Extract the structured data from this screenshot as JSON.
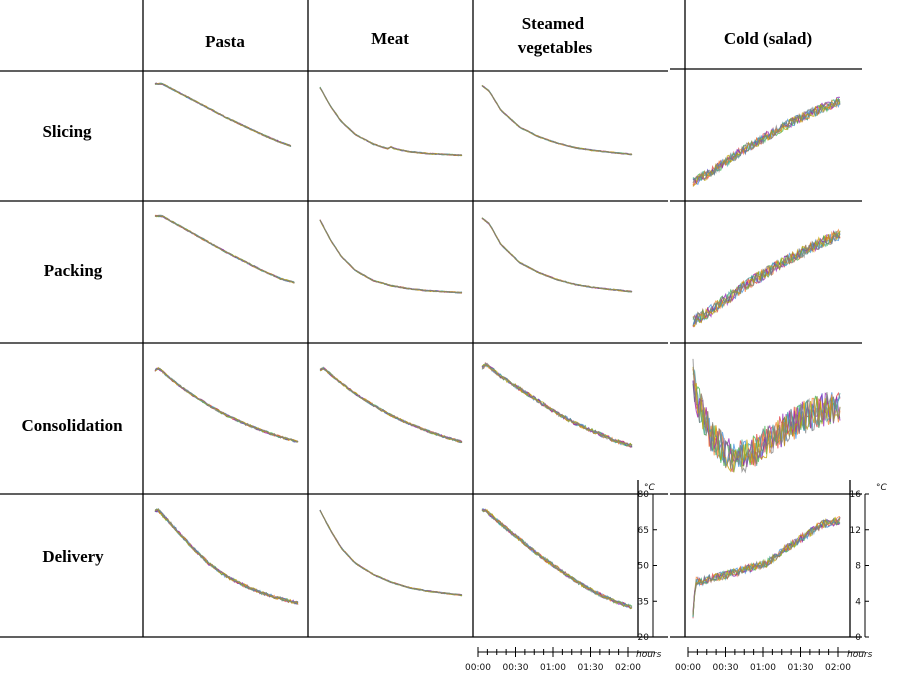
{
  "columns": [
    "Pasta",
    "Meat",
    "Steamed vegetables",
    "Cold (salad)"
  ],
  "columns_lines": [
    [
      "Pasta"
    ],
    [
      "Meat"
    ],
    [
      "Steamed",
      "vegetables"
    ],
    [
      "Cold (salad)"
    ]
  ],
  "rows": [
    "Slicing",
    "Packing",
    "Consolidation",
    "Delivery"
  ],
  "hot_axis": {
    "unit": "°C",
    "ticks": [
      "80",
      "65",
      "50",
      "35",
      "20"
    ]
  },
  "cold_axis": {
    "unit": "°C",
    "ticks": [
      "16",
      "12",
      "8",
      "4",
      "0"
    ]
  },
  "time_axis": {
    "unit": "hours",
    "ticks": [
      "00:00",
      "00:30",
      "01:00",
      "01:30",
      "02:00"
    ]
  },
  "palette": [
    "#e03c3c",
    "#3c8ee0",
    "#3cb44b",
    "#f58231",
    "#911eb4",
    "#46a0a0",
    "#c0a000",
    "#7f7f7f"
  ],
  "chart_data": {
    "type": "line",
    "description_grid": "rows x columns small multiples of temperature curves",
    "x_range_hours": [
      0,
      2
    ],
    "hot_ylim": [
      20,
      80
    ],
    "cold_ylim": [
      0,
      16
    ],
    "panels": [
      {
        "row": "Slicing",
        "column": "Pasta",
        "x": [
          0,
          0.1,
          0.25,
          0.5,
          0.75,
          1,
          1.25,
          1.5,
          1.75,
          1.9
        ],
        "y": [
          78,
          78,
          75,
          70,
          65,
          60,
          55.5,
          51,
          47,
          45
        ],
        "noise": 0.4
      },
      {
        "row": "Slicing",
        "column": "Meat",
        "x": [
          0,
          0.15,
          0.3,
          0.5,
          0.75,
          0.95,
          1.0,
          1.05,
          1.25,
          1.5,
          1.75,
          2.0
        ],
        "y": [
          76,
          66,
          58,
          51,
          46,
          43.5,
          44.5,
          43.5,
          42,
          41,
          40.5,
          40
        ],
        "noise": 0.3
      },
      {
        "row": "Slicing",
        "column": "Steamed vegetables",
        "x": [
          0,
          0.1,
          0.25,
          0.5,
          0.75,
          1,
          1.25,
          1.5,
          1.75,
          2.0
        ],
        "y": [
          77,
          74,
          64,
          55,
          50,
          46.5,
          44,
          42.5,
          41.5,
          40.5
        ],
        "noise": 0.3
      },
      {
        "row": "Slicing",
        "column": "Cold (salad)",
        "x": [
          0,
          0.25,
          0.5,
          0.75,
          1,
          1.25,
          1.5,
          1.75,
          2.0
        ],
        "y": [
          1.5,
          3,
          4.8,
          6.5,
          8,
          9.5,
          10.8,
          12,
          13
        ],
        "noise": 0.7
      },
      {
        "row": "Packing",
        "column": "Pasta",
        "x": [
          0,
          0.1,
          0.25,
          0.5,
          0.75,
          1,
          1.25,
          1.5,
          1.75,
          1.95
        ],
        "y": [
          78,
          78,
          75,
          70,
          65,
          60,
          55.5,
          51,
          47,
          45
        ],
        "noise": 0.4
      },
      {
        "row": "Packing",
        "column": "Meat",
        "x": [
          0,
          0.15,
          0.3,
          0.5,
          0.75,
          1,
          1.25,
          1.5,
          1.75,
          2.0
        ],
        "y": [
          76,
          66,
          58,
          51,
          46,
          43.5,
          42,
          41,
          40.5,
          40
        ],
        "noise": 0.3
      },
      {
        "row": "Packing",
        "column": "Steamed vegetables",
        "x": [
          0,
          0.1,
          0.25,
          0.5,
          0.75,
          1,
          1.25,
          1.5,
          1.75,
          2.0
        ],
        "y": [
          77,
          74,
          64,
          55,
          50,
          46.5,
          44,
          42.5,
          41.5,
          40.5
        ],
        "noise": 0.3
      },
      {
        "row": "Packing",
        "column": "Cold (salad)",
        "x": [
          0,
          0.25,
          0.5,
          0.75,
          1,
          1.25,
          1.5,
          1.75,
          2.0
        ],
        "y": [
          1.5,
          3,
          4.8,
          6.5,
          8,
          9.5,
          10.8,
          12,
          13
        ],
        "noise": 0.8
      },
      {
        "row": "Consolidation",
        "column": "Pasta",
        "x": [
          0,
          0.05,
          0.25,
          0.5,
          0.75,
          1,
          1.25,
          1.5,
          1.75,
          2.0
        ],
        "y": [
          75,
          76,
          70,
          63.5,
          58,
          53,
          49,
          45.5,
          42.5,
          40
        ],
        "noise": 0.6
      },
      {
        "row": "Consolidation",
        "column": "Meat",
        "x": [
          0,
          0.05,
          0.25,
          0.5,
          0.75,
          1,
          1.25,
          1.5,
          1.75,
          2.0
        ],
        "y": [
          75,
          76,
          70,
          63.5,
          58,
          53,
          49,
          45.5,
          42.5,
          40
        ],
        "noise": 0.6
      },
      {
        "row": "Consolidation",
        "column": "Steamed vegetables",
        "x": [
          0,
          0.05,
          0.25,
          0.5,
          0.75,
          1,
          1.25,
          1.5,
          1.75,
          2.0
        ],
        "y": [
          76,
          78,
          72,
          66,
          60,
          54,
          49,
          45,
          41,
          38
        ],
        "noise": 1.0
      },
      {
        "row": "Consolidation",
        "column": "Cold (salad)",
        "x": [
          0,
          0.05,
          0.25,
          0.5,
          0.75,
          1,
          1.25,
          1.5,
          1.75,
          2.0
        ],
        "y": [
          14,
          11,
          6,
          3.5,
          3.5,
          5.5,
          7,
          8.5,
          9.5,
          10
        ],
        "noise": 2.2
      },
      {
        "row": "Delivery",
        "column": "Pasta",
        "x": [
          0,
          0.05,
          0.25,
          0.5,
          0.75,
          1,
          1.25,
          1.5,
          1.75,
          2.0
        ],
        "y": [
          77,
          77,
          70,
          61,
          53,
          47,
          43,
          39.5,
          37,
          35
        ],
        "noise": 0.8
      },
      {
        "row": "Delivery",
        "column": "Meat",
        "x": [
          0,
          0.15,
          0.3,
          0.5,
          0.75,
          1,
          1.25,
          1.5,
          1.75,
          2.0
        ],
        "y": [
          77,
          68,
          60,
          53,
          48,
          44.5,
          42,
          40.5,
          39.5,
          38.5
        ],
        "noise": 0.3
      },
      {
        "row": "Delivery",
        "column": "Steamed vegetables",
        "x": [
          0,
          0.05,
          0.25,
          0.5,
          0.75,
          1,
          1.25,
          1.5,
          1.75,
          2.0
        ],
        "y": [
          77,
          77,
          71,
          64,
          57,
          51,
          45,
          40,
          36,
          33
        ],
        "noise": 0.9
      },
      {
        "row": "Delivery",
        "column": "Cold (salad)",
        "x": [
          0,
          0.02,
          0.05,
          0.08,
          0.25,
          0.5,
          0.75,
          1,
          1.25,
          1.5,
          1.75,
          2.0
        ],
        "y": [
          2.5,
          5,
          7,
          6.5,
          7,
          7.5,
          8.2,
          8.8,
          10.5,
          12,
          13.5,
          14
        ],
        "noise": 0.5
      }
    ]
  }
}
